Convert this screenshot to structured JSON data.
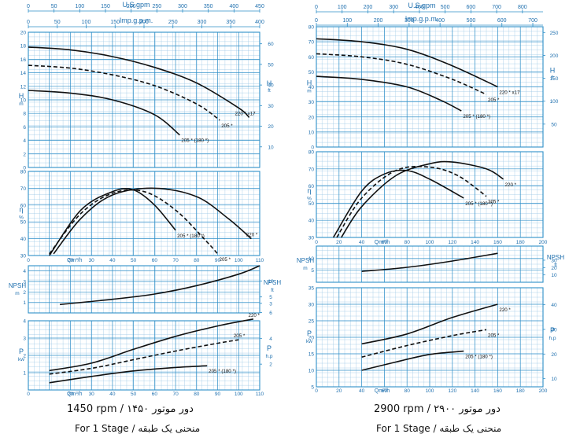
{
  "colors": {
    "grid_major": "#2f8fc8",
    "grid_minor": "#9cc8e6",
    "curve": "#111111",
    "label": "#1e6fae",
    "background": "#ffffff"
  },
  "captions": {
    "left_speed": "1450 rpm / دور موتور ۱۴۵۰",
    "left_stage": "For 1 Stage / منحنی یک طبقه",
    "right_speed": "2900 rpm / دور موتور ۲۹۰۰",
    "right_stage": "For 1 Stage / منحنی یک طبقه"
  },
  "chart_data": [
    {
      "type": "line",
      "speed": "1450 rpm",
      "top_axes": [
        {
          "label": "U.S.gpm",
          "ticks": [
            "0",
            "50",
            "100",
            "150",
            "200",
            "250",
            "300",
            "350",
            "400",
            "450"
          ],
          "max": 450
        },
        {
          "label": "Imp.g.p.m.",
          "ticks": [
            "0",
            "50",
            "100",
            "150",
            "200",
            "250",
            "300",
            "350",
            "400"
          ],
          "max": 400
        }
      ],
      "q_max": 110,
      "q_axis_ticks": [
        "0",
        "10",
        "20",
        "30",
        "40",
        "50",
        "60",
        "70",
        "80",
        "90",
        "100",
        "110"
      ],
      "q_label": "Qm³/h",
      "panels": [
        {
          "id": "head",
          "left_label": "H",
          "left_unit": "m",
          "right_label": "H",
          "right_unit": "ft",
          "left_range": [
            0,
            20
          ],
          "left_ticks": [
            "0",
            "2",
            "4",
            "6",
            "8",
            "10",
            "12",
            "14",
            "16",
            "18",
            "20"
          ],
          "right_range": [
            0,
            65.6
          ],
          "right_ticks": [
            "10",
            "20",
            "30",
            "40",
            "50",
            "60"
          ],
          "series": [
            {
              "name": "220 * x17",
              "dashed": false,
              "x": [
                0,
                20,
                40,
                60,
                80,
                100,
                105
              ],
              "y": [
                17.8,
                17.4,
                16.4,
                14.8,
                12.5,
                8.8,
                7.4
              ]
            },
            {
              "name": "205 *",
              "dashed": true,
              "x": [
                0,
                20,
                40,
                60,
                80,
                91
              ],
              "y": [
                15.1,
                14.7,
                13.7,
                12.1,
                9.4,
                7.0
              ]
            },
            {
              "name": "205 * (180 *)",
              "dashed": false,
              "x": [
                0,
                20,
                40,
                60,
                72
              ],
              "y": [
                11.4,
                11.0,
                10.0,
                7.8,
                4.8
              ]
            }
          ]
        },
        {
          "id": "efficiency",
          "left_label": "η",
          "left_unit": "%",
          "left_range": [
            30,
            80
          ],
          "left_ticks": [
            "30",
            "40",
            "50",
            "60",
            "70",
            "80"
          ],
          "series": [
            {
              "name": "220 *",
              "dashed": false,
              "x": [
                12,
                25,
                40,
                60,
                80,
                95,
                106
              ],
              "y": [
                31,
                52,
                66,
                70,
                65,
                52,
                40
              ]
            },
            {
              "name": "205 *",
              "dashed": true,
              "x": [
                10,
                25,
                40,
                55,
                70,
                85,
                90
              ],
              "y": [
                31,
                55,
                67,
                68,
                57,
                38,
                31
              ]
            },
            {
              "name": "205 * (180 *)",
              "dashed": false,
              "x": [
                10,
                25,
                40,
                50,
                60,
                70
              ],
              "y": [
                30,
                57,
                68,
                69,
                60,
                45
              ]
            }
          ]
        },
        {
          "id": "npsh",
          "left_label": "NPSH",
          "left_unit": "m",
          "right_label": "NPSH",
          "right_unit": "ft",
          "left_range": [
            0,
            4.5
          ],
          "left_ticks": [
            "1",
            "2",
            "3",
            "4"
          ],
          "right_range": [
            0,
            14.76
          ],
          "right_ticks": [
            "3",
            "5",
            "10"
          ],
          "series": [
            {
              "name": "NPSH",
              "dashed": false,
              "x": [
                15,
                40,
                60,
                80,
                100,
                110
              ],
              "y": [
                0.8,
                1.3,
                1.8,
                2.6,
                3.7,
                4.5
              ]
            }
          ]
        },
        {
          "id": "power",
          "left_label": "P",
          "left_unit": "kw",
          "right_label": "P",
          "right_unit": "h.p",
          "left_range": [
            0,
            4
          ],
          "left_ticks": [
            "1",
            "2",
            "3",
            "4"
          ],
          "right_range": [
            0,
            5.36
          ],
          "right_ticks": [
            "2",
            "4",
            "6"
          ],
          "series": [
            {
              "name": "220 *",
              "dashed": false,
              "x": [
                10,
                30,
                50,
                70,
                90,
                107
              ],
              "y": [
                1.12,
                1.55,
                2.35,
                3.1,
                3.7,
                4.1
              ]
            },
            {
              "name": "205 *",
              "dashed": true,
              "x": [
                10,
                30,
                50,
                70,
                90,
                100
              ],
              "y": [
                0.92,
                1.25,
                1.75,
                2.25,
                2.7,
                2.9
              ]
            },
            {
              "name": "205 * (180 *)",
              "dashed": false,
              "x": [
                10,
                30,
                50,
                70,
                85
              ],
              "y": [
                0.42,
                0.78,
                1.1,
                1.3,
                1.4
              ]
            }
          ]
        }
      ]
    },
    {
      "type": "line",
      "speed": "2900 rpm",
      "top_axes": [
        {
          "label": "U.S.gpm",
          "ticks": [
            "0",
            "100",
            "200",
            "300",
            "400",
            "500",
            "600",
            "700",
            "800"
          ],
          "max": 880
        },
        {
          "label": "Imp.g.p.m.",
          "ticks": [
            "0",
            "100",
            "200",
            "300",
            "400",
            "500",
            "600",
            "700"
          ],
          "max": 733
        }
      ],
      "q_max": 200,
      "q_axis_ticks": [
        "0",
        "20",
        "40",
        "60",
        "80",
        "100",
        "120",
        "140",
        "160",
        "180",
        "200"
      ],
      "q_label": "Qm³/h",
      "panels": [
        {
          "id": "head",
          "left_label": "H",
          "left_unit": "m",
          "right_label": "H",
          "right_unit": "ft",
          "left_range": [
            0,
            80
          ],
          "left_ticks": [
            "0",
            "10",
            "20",
            "30",
            "40",
            "50",
            "60",
            "70",
            "80"
          ],
          "right_range": [
            0,
            262.5
          ],
          "right_ticks": [
            "50",
            "100",
            "150",
            "200",
            "250"
          ],
          "series": [
            {
              "name": "220 * x17",
              "dashed": false,
              "x": [
                0,
                40,
                80,
                120,
                160
              ],
              "y": [
                72,
                70,
                65,
                54,
                40
              ]
            },
            {
              "name": "205 *",
              "dashed": true,
              "x": [
                0,
                40,
                80,
                120,
                150
              ],
              "y": [
                62,
                60,
                55,
                45,
                35
              ]
            },
            {
              "name": "205 * (180 *)",
              "dashed": false,
              "x": [
                0,
                40,
                80,
                110,
                128
              ],
              "y": [
                47,
                45,
                40,
                31,
                24
              ]
            }
          ]
        },
        {
          "id": "efficiency",
          "left_label": "η",
          "left_unit": "%",
          "left_range": [
            30,
            80
          ],
          "left_ticks": [
            "30",
            "40",
            "50",
            "60",
            "70",
            "80"
          ],
          "series": [
            {
              "name": "220 *",
              "dashed": false,
              "x": [
                22,
                40,
                70,
                100,
                120,
                150,
                165
              ],
              "y": [
                30,
                48,
                66,
                73,
                74,
                70,
                64
              ]
            },
            {
              "name": "205 *",
              "dashed": true,
              "x": [
                18,
                40,
                70,
                100,
                125,
                150
              ],
              "y": [
                30,
                53,
                69,
                71,
                66,
                54
              ]
            },
            {
              "name": "205 * (180 *)",
              "dashed": false,
              "x": [
                15,
                40,
                60,
                80,
                100,
                130
              ],
              "y": [
                30,
                57,
                67,
                69,
                64,
                53
              ]
            }
          ]
        },
        {
          "id": "npsh",
          "left_label": "NPSH",
          "left_unit": "m",
          "right_label": "NPSH",
          "right_unit": "ft",
          "left_range": [
            0,
            15
          ],
          "left_ticks": [
            "5",
            "10"
          ],
          "right_range": [
            0,
            49.2
          ],
          "right_ticks": [
            "10",
            "20",
            "30"
          ],
          "series": [
            {
              "name": "NPSH",
              "dashed": false,
              "x": [
                40,
                80,
                120,
                160
              ],
              "y": [
                4.5,
                6.2,
                8.8,
                12
              ]
            }
          ]
        },
        {
          "id": "power",
          "left_label": "P",
          "left_unit": "kw",
          "right_label": "P",
          "right_unit": "h.p",
          "left_range": [
            5,
            35
          ],
          "left_ticks": [
            "5",
            "10",
            "15",
            "20",
            "25",
            "30",
            "35"
          ],
          "right_range": [
            6.7,
            46.9
          ],
          "right_ticks": [
            "10",
            "20",
            "30",
            "40"
          ],
          "series": [
            {
              "name": "220 *",
              "dashed": false,
              "x": [
                40,
                80,
                120,
                160
              ],
              "y": [
                18,
                21,
                26,
                30
              ]
            },
            {
              "name": "205 *",
              "dashed": true,
              "x": [
                40,
                80,
                120,
                150
              ],
              "y": [
                14,
                17.5,
                20.5,
                22.3
              ]
            },
            {
              "name": "205 * (180 *)",
              "dashed": false,
              "x": [
                40,
                70,
                100,
                130
              ],
              "y": [
                10,
                12.5,
                14.8,
                15.8
              ]
            }
          ]
        }
      ]
    }
  ]
}
